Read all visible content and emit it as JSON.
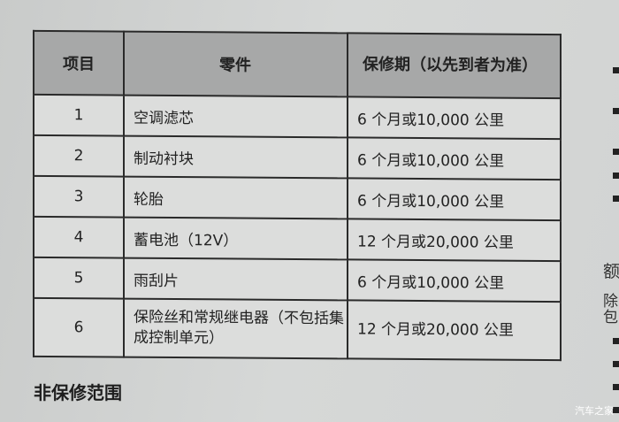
{
  "table": {
    "headers": [
      "项目",
      "零件",
      "保修期（以先到者为准）"
    ],
    "rows": [
      {
        "no": "1",
        "part": "空调滤芯",
        "period": "6 个月或10,000 公里"
      },
      {
        "no": "2",
        "part": "制动衬块",
        "period": "6 个月或10,000 公里"
      },
      {
        "no": "3",
        "part": "轮胎",
        "period": "6 个月或10,000 公里"
      },
      {
        "no": "4",
        "part": "蓄电池（12V）",
        "period": "12 个月或20,000 公里"
      },
      {
        "no": "5",
        "part": "雨刮片",
        "period": "6 个月或10,000 公里"
      },
      {
        "no": "6",
        "part": "保险丝和常规继电器（不包括集成控制单元）",
        "period": "12 个月或20,000 公里"
      }
    ]
  },
  "section_heading": "非保修范围",
  "right_column": {
    "fragments": [
      "额",
      "除",
      "包"
    ]
  },
  "watermark": "汽车之家"
}
